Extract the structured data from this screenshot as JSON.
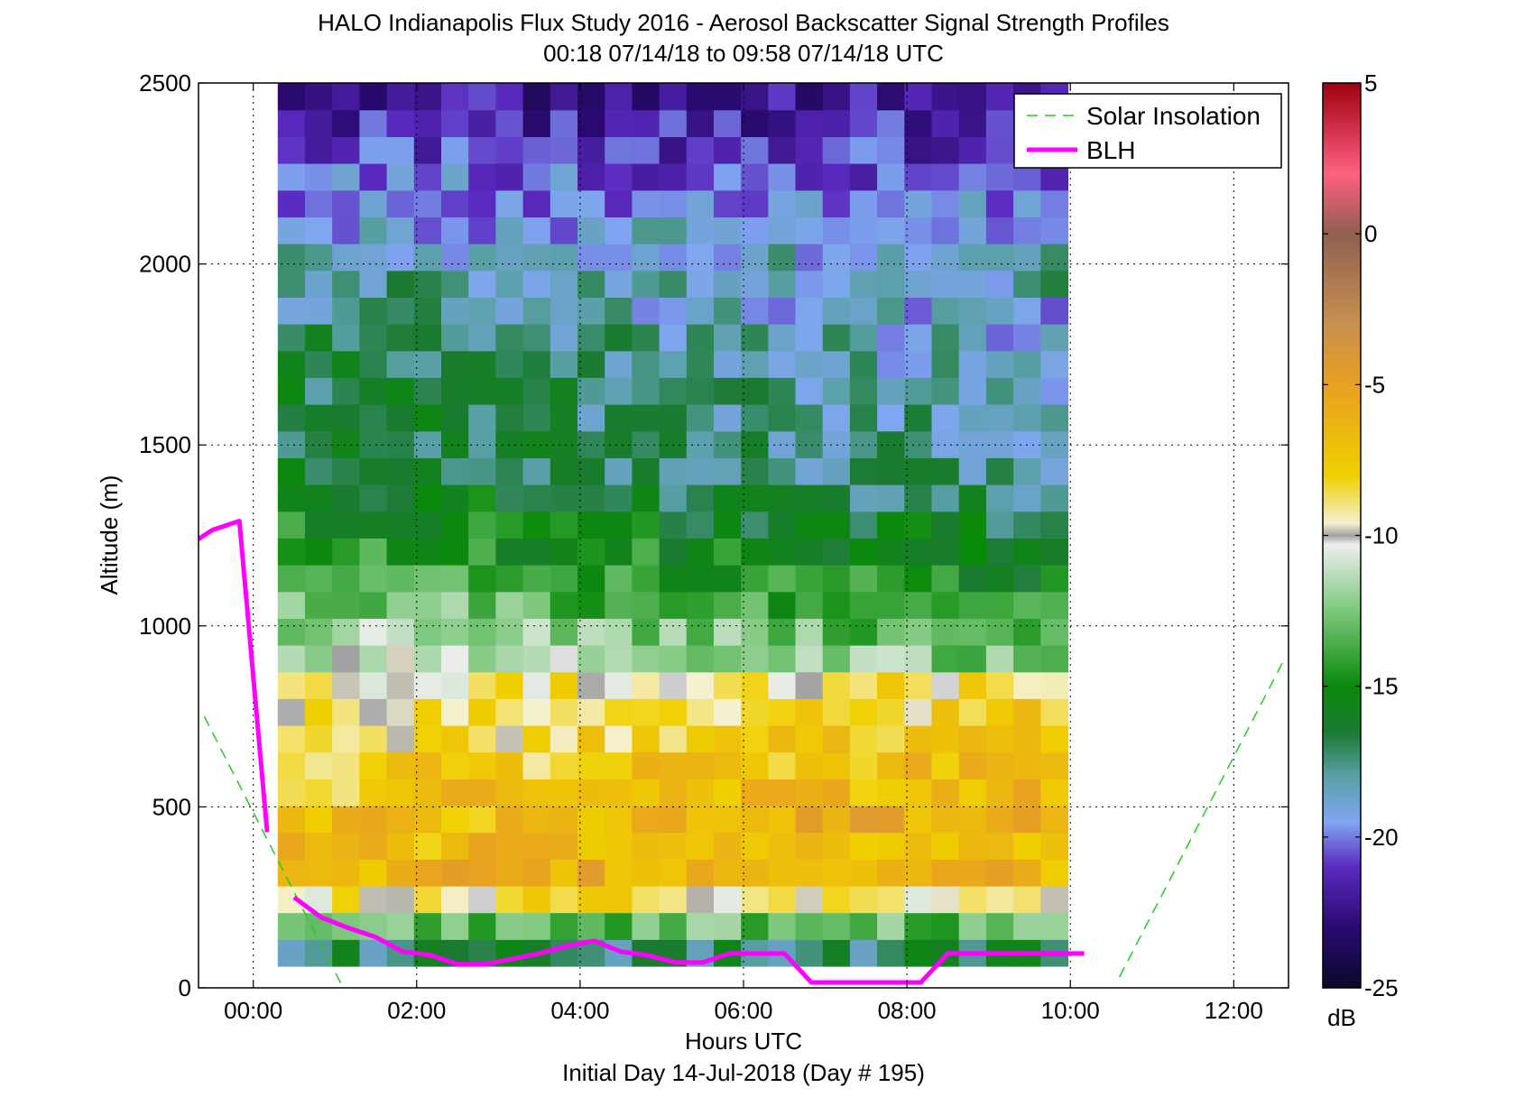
{
  "chart_data": {
    "type": "heatmap",
    "title": "HALO Indianapolis Flux Study 2016 - Aerosol Backscatter Signal Strength Profiles",
    "subtitle": "00:18 07/14/18 to 09:58 07/14/18  UTC",
    "xlabel": "Hours UTC",
    "xlabel2": "Initial Day 14-Jul-2018 (Day # 195)",
    "ylabel": "Altitude (m)",
    "xlim_hours": [
      -0.67,
      12.67
    ],
    "ylim": [
      0,
      2500
    ],
    "x_ticks": [
      {
        "value": 0,
        "label": "00:00"
      },
      {
        "value": 2,
        "label": "02:00"
      },
      {
        "value": 4,
        "label": "04:00"
      },
      {
        "value": 6,
        "label": "06:00"
      },
      {
        "value": 8,
        "label": "08:00"
      },
      {
        "value": 10,
        "label": "10:00"
      },
      {
        "value": 12,
        "label": "12:00"
      }
    ],
    "y_ticks": [
      {
        "value": 0,
        "label": "0"
      },
      {
        "value": 500,
        "label": "500"
      },
      {
        "value": 1000,
        "label": "1000"
      },
      {
        "value": 1500,
        "label": "1500"
      },
      {
        "value": 2000,
        "label": "2000"
      },
      {
        "value": 2500,
        "label": "2500"
      }
    ],
    "grid": "dotted",
    "heatmap": {
      "time_start_hours": 0.3,
      "time_end_hours": 9.97,
      "n_time_bins": 29,
      "altitude_start": 60,
      "altitude_end": 2500,
      "n_altitude_bins": 33,
      "value_units": "dB",
      "profile_summary": [
        {
          "altitude": 100,
          "value": -17
        },
        {
          "altitude": 300,
          "value": -6
        },
        {
          "altitude": 600,
          "value": -8
        },
        {
          "altitude": 850,
          "value": -10
        },
        {
          "altitude": 1100,
          "value": -13
        },
        {
          "altitude": 1400,
          "value": -16
        },
        {
          "altitude": 1800,
          "value": -17
        },
        {
          "altitude": 2200,
          "value": -20
        },
        {
          "altitude": 2450,
          "value": -22
        }
      ]
    },
    "series": [
      {
        "name": "Solar Insolation",
        "style": "dashed",
        "color": "#22cc22",
        "segments": [
          [
            [
              -0.6,
              750
            ],
            [
              1.1,
              0
            ]
          ],
          [
            [
              10.6,
              30
            ],
            [
              12.6,
              900
            ]
          ]
        ]
      },
      {
        "name": "BLH",
        "style": "solid",
        "color": "#ff00ff",
        "x": [
          -0.67,
          -0.5,
          -0.17,
          0.17,
          null,
          0.5,
          0.83,
          1.17,
          1.5,
          1.83,
          2.17,
          2.5,
          2.83,
          3.17,
          3.5,
          3.83,
          4.17,
          4.5,
          4.83,
          5.17,
          5.5,
          5.83,
          6.17,
          6.5,
          6.83,
          7.17,
          7.5,
          7.83,
          8.17,
          8.5,
          8.83,
          9.17,
          9.5,
          9.83,
          10.17
        ],
        "y": [
          1240,
          1265,
          1290,
          430,
          null,
          250,
          195,
          165,
          140,
          100,
          90,
          65,
          65,
          80,
          95,
          115,
          130,
          100,
          90,
          70,
          70,
          95,
          95,
          95,
          15,
          15,
          15,
          15,
          15,
          95,
          95,
          95,
          95,
          95,
          95
        ]
      }
    ],
    "legend": {
      "placement": "top-right",
      "entries": [
        "Solar Insolation",
        "BLH"
      ]
    },
    "colorbar": {
      "label": "dB",
      "range": [
        -25,
        5
      ],
      "ticks": [
        {
          "value": 5,
          "label": "5"
        },
        {
          "value": 0,
          "label": "0"
        },
        {
          "value": -5,
          "label": "-5"
        },
        {
          "value": -10,
          "label": "-10"
        },
        {
          "value": -15,
          "label": "-15"
        },
        {
          "value": -20,
          "label": "-20"
        },
        {
          "value": -25,
          "label": "-25"
        }
      ],
      "stops": [
        {
          "value": -25,
          "color": "#0a0a2a"
        },
        {
          "value": -23,
          "color": "#2a0a70"
        },
        {
          "value": -21,
          "color": "#5a2ac0"
        },
        {
          "value": -19.5,
          "color": "#7fa6f0"
        },
        {
          "value": -18,
          "color": "#5aa0a8"
        },
        {
          "value": -16.5,
          "color": "#1a7a30"
        },
        {
          "value": -15,
          "color": "#0a8a0a"
        },
        {
          "value": -12.5,
          "color": "#7cc87c"
        },
        {
          "value": -10.3,
          "color": "#eeeeee"
        },
        {
          "value": -10,
          "color": "#a0a0a0"
        },
        {
          "value": -9.6,
          "color": "#f5f0d0"
        },
        {
          "value": -8,
          "color": "#f0d000"
        },
        {
          "value": -5,
          "color": "#e8a020"
        },
        {
          "value": -3,
          "color": "#c89050"
        },
        {
          "value": 0,
          "color": "#906050"
        },
        {
          "value": 2,
          "color": "#ff6080"
        },
        {
          "value": 5,
          "color": "#a00010"
        }
      ]
    },
    "colors": {
      "background": "#ffffff",
      "blh": "#ff00ff",
      "solar": "#22cc22"
    }
  }
}
